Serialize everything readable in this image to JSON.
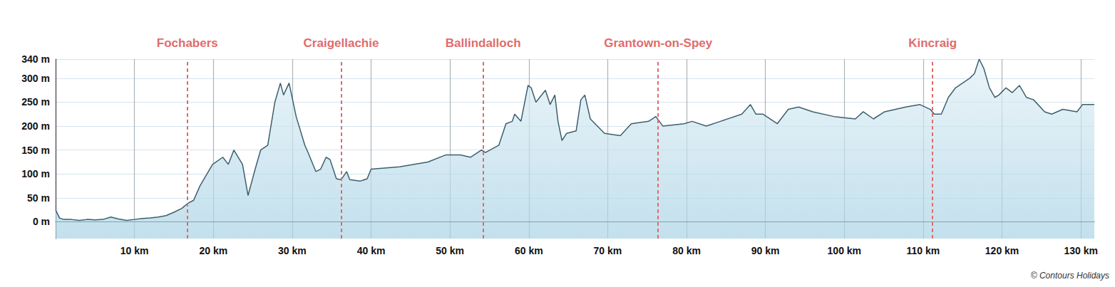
{
  "chart_data": {
    "type": "area",
    "color": "#3d5f6e",
    "grid": true,
    "x": [
      0,
      0.5,
      1,
      2,
      3,
      4,
      5,
      6,
      7,
      8,
      9,
      10,
      11,
      12,
      13,
      14,
      15,
      16,
      16.7,
      17.5,
      18.3,
      19.9,
      21.2,
      21.9,
      22.6,
      23.7,
      24.4,
      25.3,
      26,
      26.9,
      27.8,
      28.5,
      28.9,
      29.6,
      30.5,
      31.6,
      32,
      33,
      33.6,
      34.3,
      34.8,
      35.6,
      36.2,
      36.9,
      37.3,
      38.6,
      39.5,
      40,
      43.6,
      47.2,
      49.5,
      51.3,
      52.6,
      54,
      54.5,
      56.2,
      57.1,
      57.9,
      58.2,
      59,
      59.9,
      60.3,
      60.9,
      62.1,
      62.7,
      63.3,
      63.7,
      64.2,
      64.8,
      66,
      66.6,
      67.1,
      67.8,
      69.6,
      71.6,
      73,
      75.2,
      76.1,
      77,
      79.7,
      80.7,
      82.5,
      84.3,
      87,
      88.1,
      88.8,
      89.7,
      91.5,
      92.9,
      94.2,
      96,
      98.7,
      101.4,
      102.4,
      103.7,
      105.1,
      107.8,
      109.6,
      110.9,
      111.4,
      112.3,
      113.2,
      114.1,
      115,
      115.9,
      116.5,
      117.1,
      117.7,
      118.4,
      119.1,
      119.6,
      120.5,
      121.3,
      122.2,
      123.1,
      124,
      125.4,
      126.3,
      127.7,
      129.5,
      130.2,
      131.7
    ],
    "values": [
      25,
      8,
      5,
      5,
      3,
      5,
      4,
      5,
      10,
      6,
      3,
      5,
      7,
      8,
      10,
      13,
      20,
      28,
      38,
      45,
      75,
      120,
      135,
      120,
      150,
      120,
      55,
      110,
      150,
      160,
      250,
      290,
      265,
      290,
      220,
      160,
      145,
      105,
      110,
      135,
      130,
      90,
      88,
      105,
      88,
      85,
      90,
      110,
      115,
      125,
      140,
      140,
      135,
      150,
      145,
      160,
      205,
      210,
      225,
      210,
      285,
      280,
      250,
      275,
      245,
      265,
      210,
      170,
      185,
      190,
      255,
      265,
      215,
      185,
      180,
      205,
      210,
      220,
      200,
      205,
      210,
      200,
      210,
      225,
      245,
      225,
      225,
      205,
      235,
      240,
      230,
      220,
      215,
      230,
      215,
      230,
      240,
      245,
      235,
      225,
      225,
      260,
      280,
      290,
      300,
      310,
      340,
      320,
      280,
      260,
      265,
      280,
      270,
      285,
      260,
      255,
      230,
      225,
      235,
      230,
      245,
      245
    ],
    "xlim": [
      0,
      131.7
    ],
    "xticks": [
      {
        "value": 10,
        "label": "10 km"
      },
      {
        "value": 20,
        "label": "20 km"
      },
      {
        "value": 30,
        "label": "30 km"
      },
      {
        "value": 40,
        "label": "40 km"
      },
      {
        "value": 50,
        "label": "50 km"
      },
      {
        "value": 60,
        "label": "60 km"
      },
      {
        "value": 70,
        "label": "70 km"
      },
      {
        "value": 80,
        "label": "80 km"
      },
      {
        "value": 90,
        "label": "90 km"
      },
      {
        "value": 100,
        "label": "100 km"
      },
      {
        "value": 110,
        "label": "110 km"
      },
      {
        "value": 120,
        "label": "120 km"
      },
      {
        "value": 130,
        "label": "130 km"
      }
    ],
    "ylim": [
      -35,
      340
    ],
    "yticks": [
      {
        "value": 0,
        "label": "0 m"
      },
      {
        "value": 50,
        "label": "50 m"
      },
      {
        "value": 100,
        "label": "100 m"
      },
      {
        "value": 150,
        "label": "150 m"
      },
      {
        "value": 200,
        "label": "200 m"
      },
      {
        "value": 250,
        "label": "250 m"
      },
      {
        "value": 300,
        "label": "300 m"
      },
      {
        "value": 340,
        "label": "340 m"
      }
    ],
    "annotations": [
      {
        "x": 16.7,
        "text": "Fochabers"
      },
      {
        "x": 36.2,
        "text": "Craigellachie"
      },
      {
        "x": 54.2,
        "text": "Ballindalloch"
      },
      {
        "x": 76.4,
        "text": "Grantown-on-Spey"
      },
      {
        "x": 111.2,
        "text": "Kincraig"
      }
    ],
    "source": "© Contours Holidays"
  }
}
